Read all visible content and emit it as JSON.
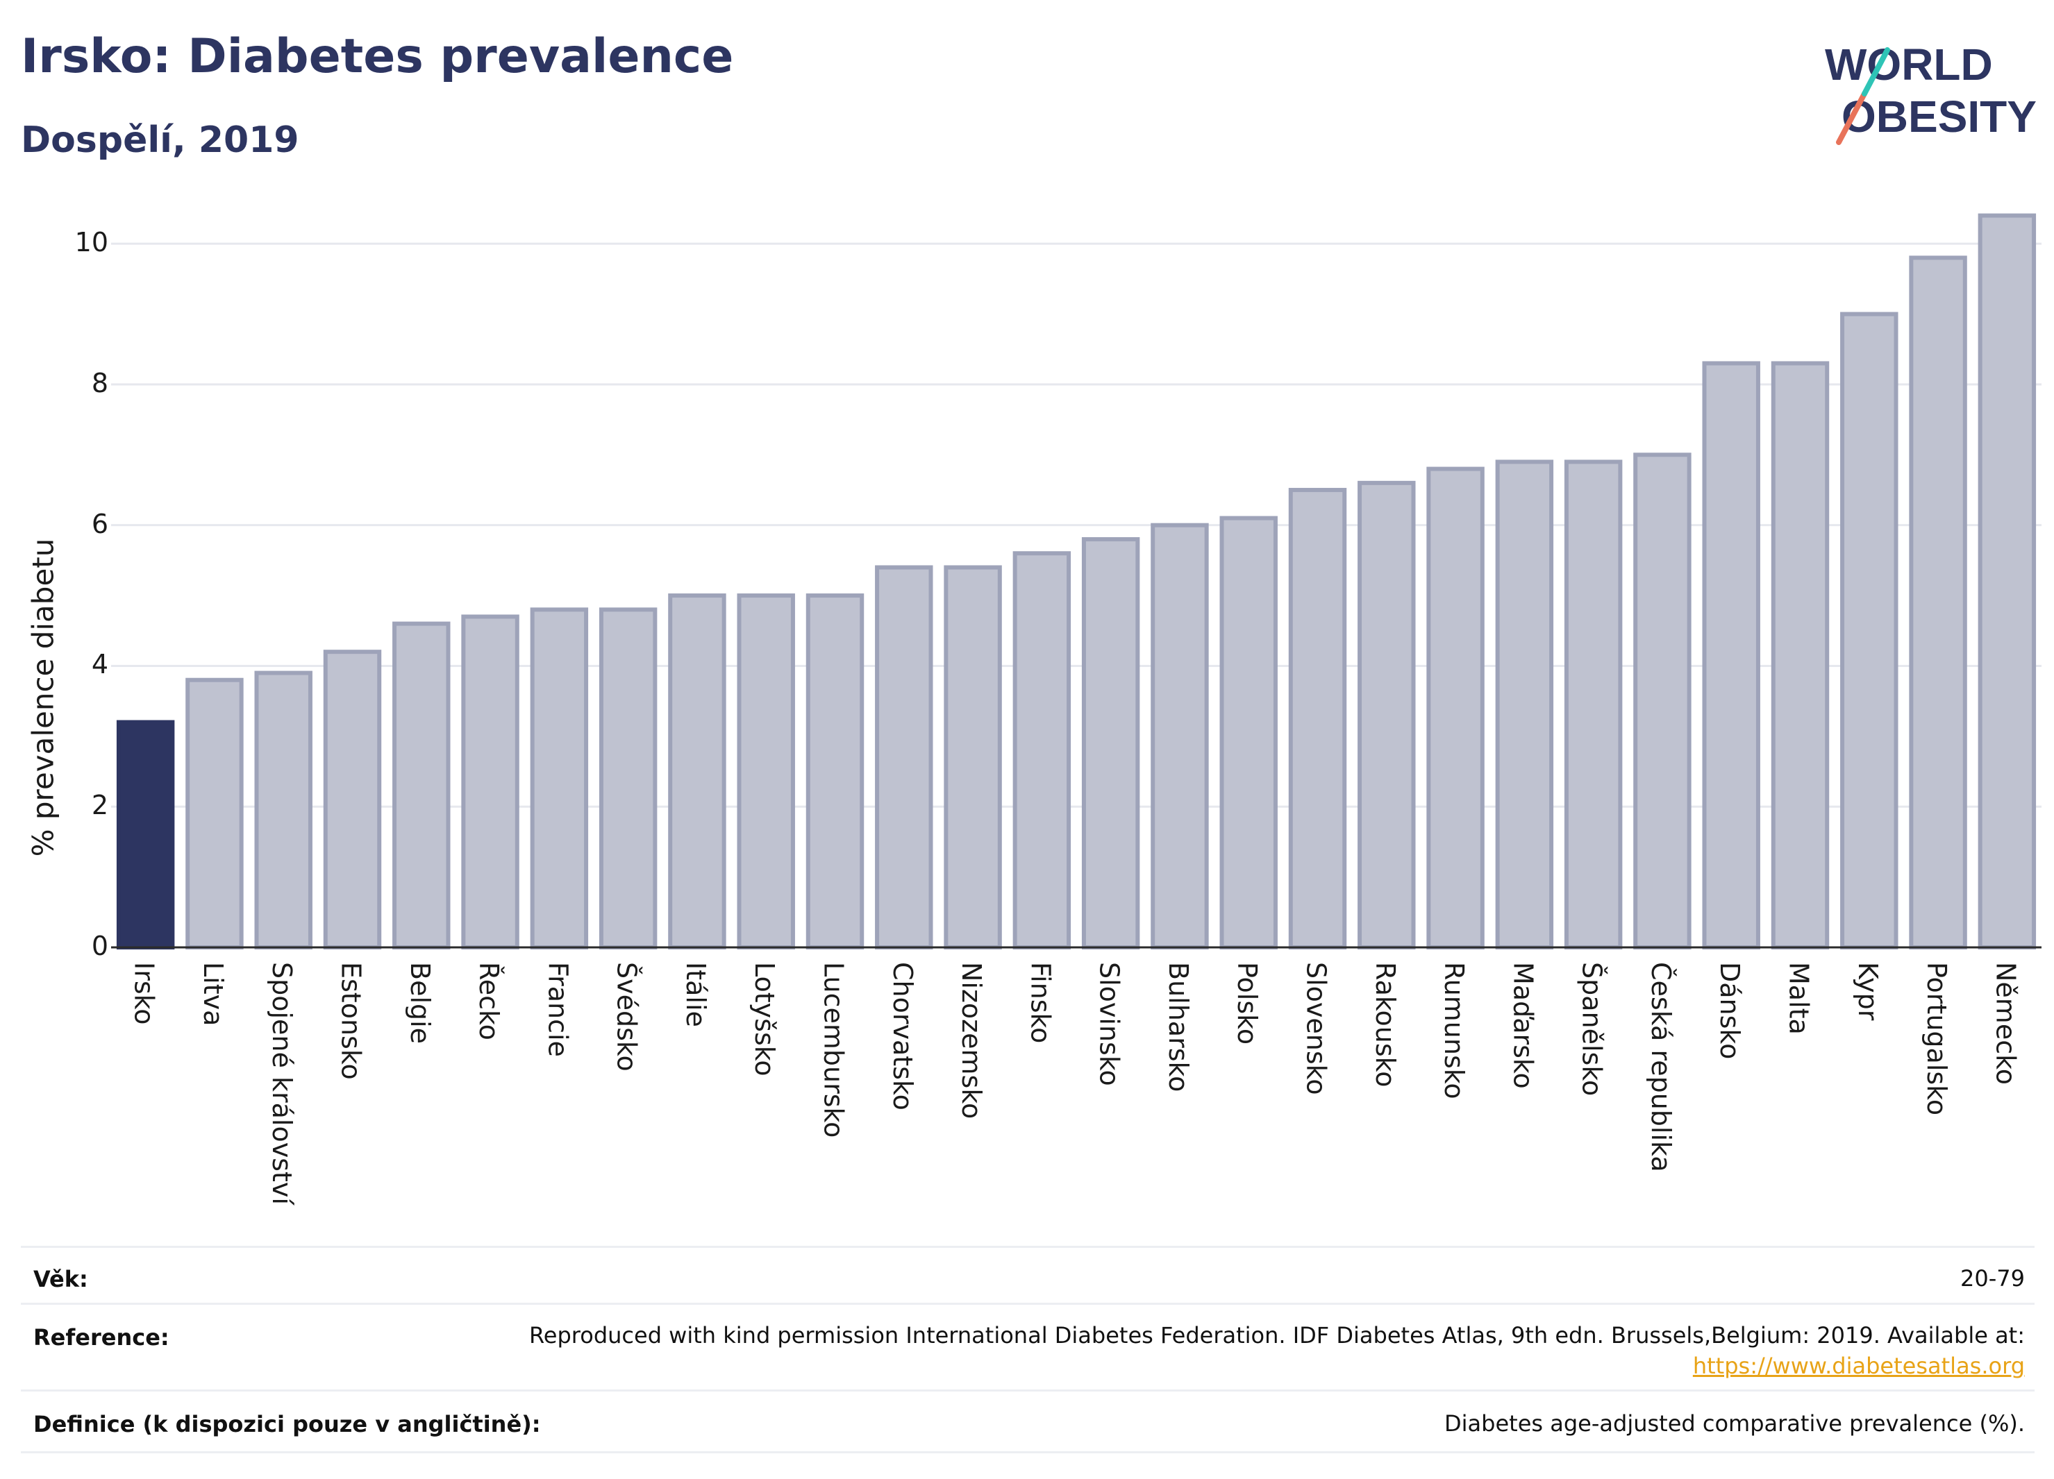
{
  "title": "Irsko: Diabetes prevalence",
  "subtitle": "Dospělí, 2019",
  "logo": {
    "line1": "WORLD",
    "line2": "OBESITY"
  },
  "colors": {
    "highlight": "#2d3561",
    "bar": "#bfc2d0",
    "bar_border": "#9ea3b9",
    "accent_teal": "#2ec4b6",
    "accent_coral": "#e8735a",
    "link": "#e8a317"
  },
  "chart_data": {
    "type": "bar",
    "title": "Irsko: Diabetes prevalence",
    "subtitle": "Dospělí, 2019",
    "ylabel": "% prevalence diabetu",
    "xlabel": "",
    "ylim": [
      0,
      10.8
    ],
    "yticks": [
      0,
      2,
      4,
      6,
      8,
      10
    ],
    "grid": true,
    "highlight": "Irsko",
    "categories": [
      "Irsko",
      "Litva",
      "Spojené království",
      "Estonsko",
      "Belgie",
      "Řecko",
      "Francie",
      "Švédsko",
      "Itálie",
      "Lotyšsko",
      "Lucembursko",
      "Chorvatsko",
      "Nizozemsko",
      "Finsko",
      "Slovinsko",
      "Bulharsko",
      "Polsko",
      "Slovensko",
      "Rakousko",
      "Rumunsko",
      "Maďarsko",
      "Španělsko",
      "Česká republika",
      "Dánsko",
      "Malta",
      "Kypr",
      "Portugalsko",
      "Německo"
    ],
    "values": [
      3.2,
      3.8,
      3.9,
      4.2,
      4.6,
      4.7,
      4.8,
      4.8,
      5.0,
      5.0,
      5.0,
      5.4,
      5.4,
      5.6,
      5.8,
      6.0,
      6.1,
      6.5,
      6.6,
      6.8,
      6.9,
      6.9,
      7.0,
      8.3,
      8.3,
      9.0,
      9.8,
      10.4
    ]
  },
  "footer": {
    "age_label": "Věk:",
    "age_value": "20-79",
    "reference_label": "Reference:",
    "reference_value": "Reproduced with kind permission International Diabetes Federation. IDF Diabetes Atlas, 9th edn. Brussels,Belgium: 2019. Available at:",
    "reference_link": "https://www.diabetesatlas.org",
    "definition_label": "Definice (k dispozici pouze v angličtině):",
    "definition_value": "Diabetes age-adjusted comparative prevalence (%)."
  }
}
